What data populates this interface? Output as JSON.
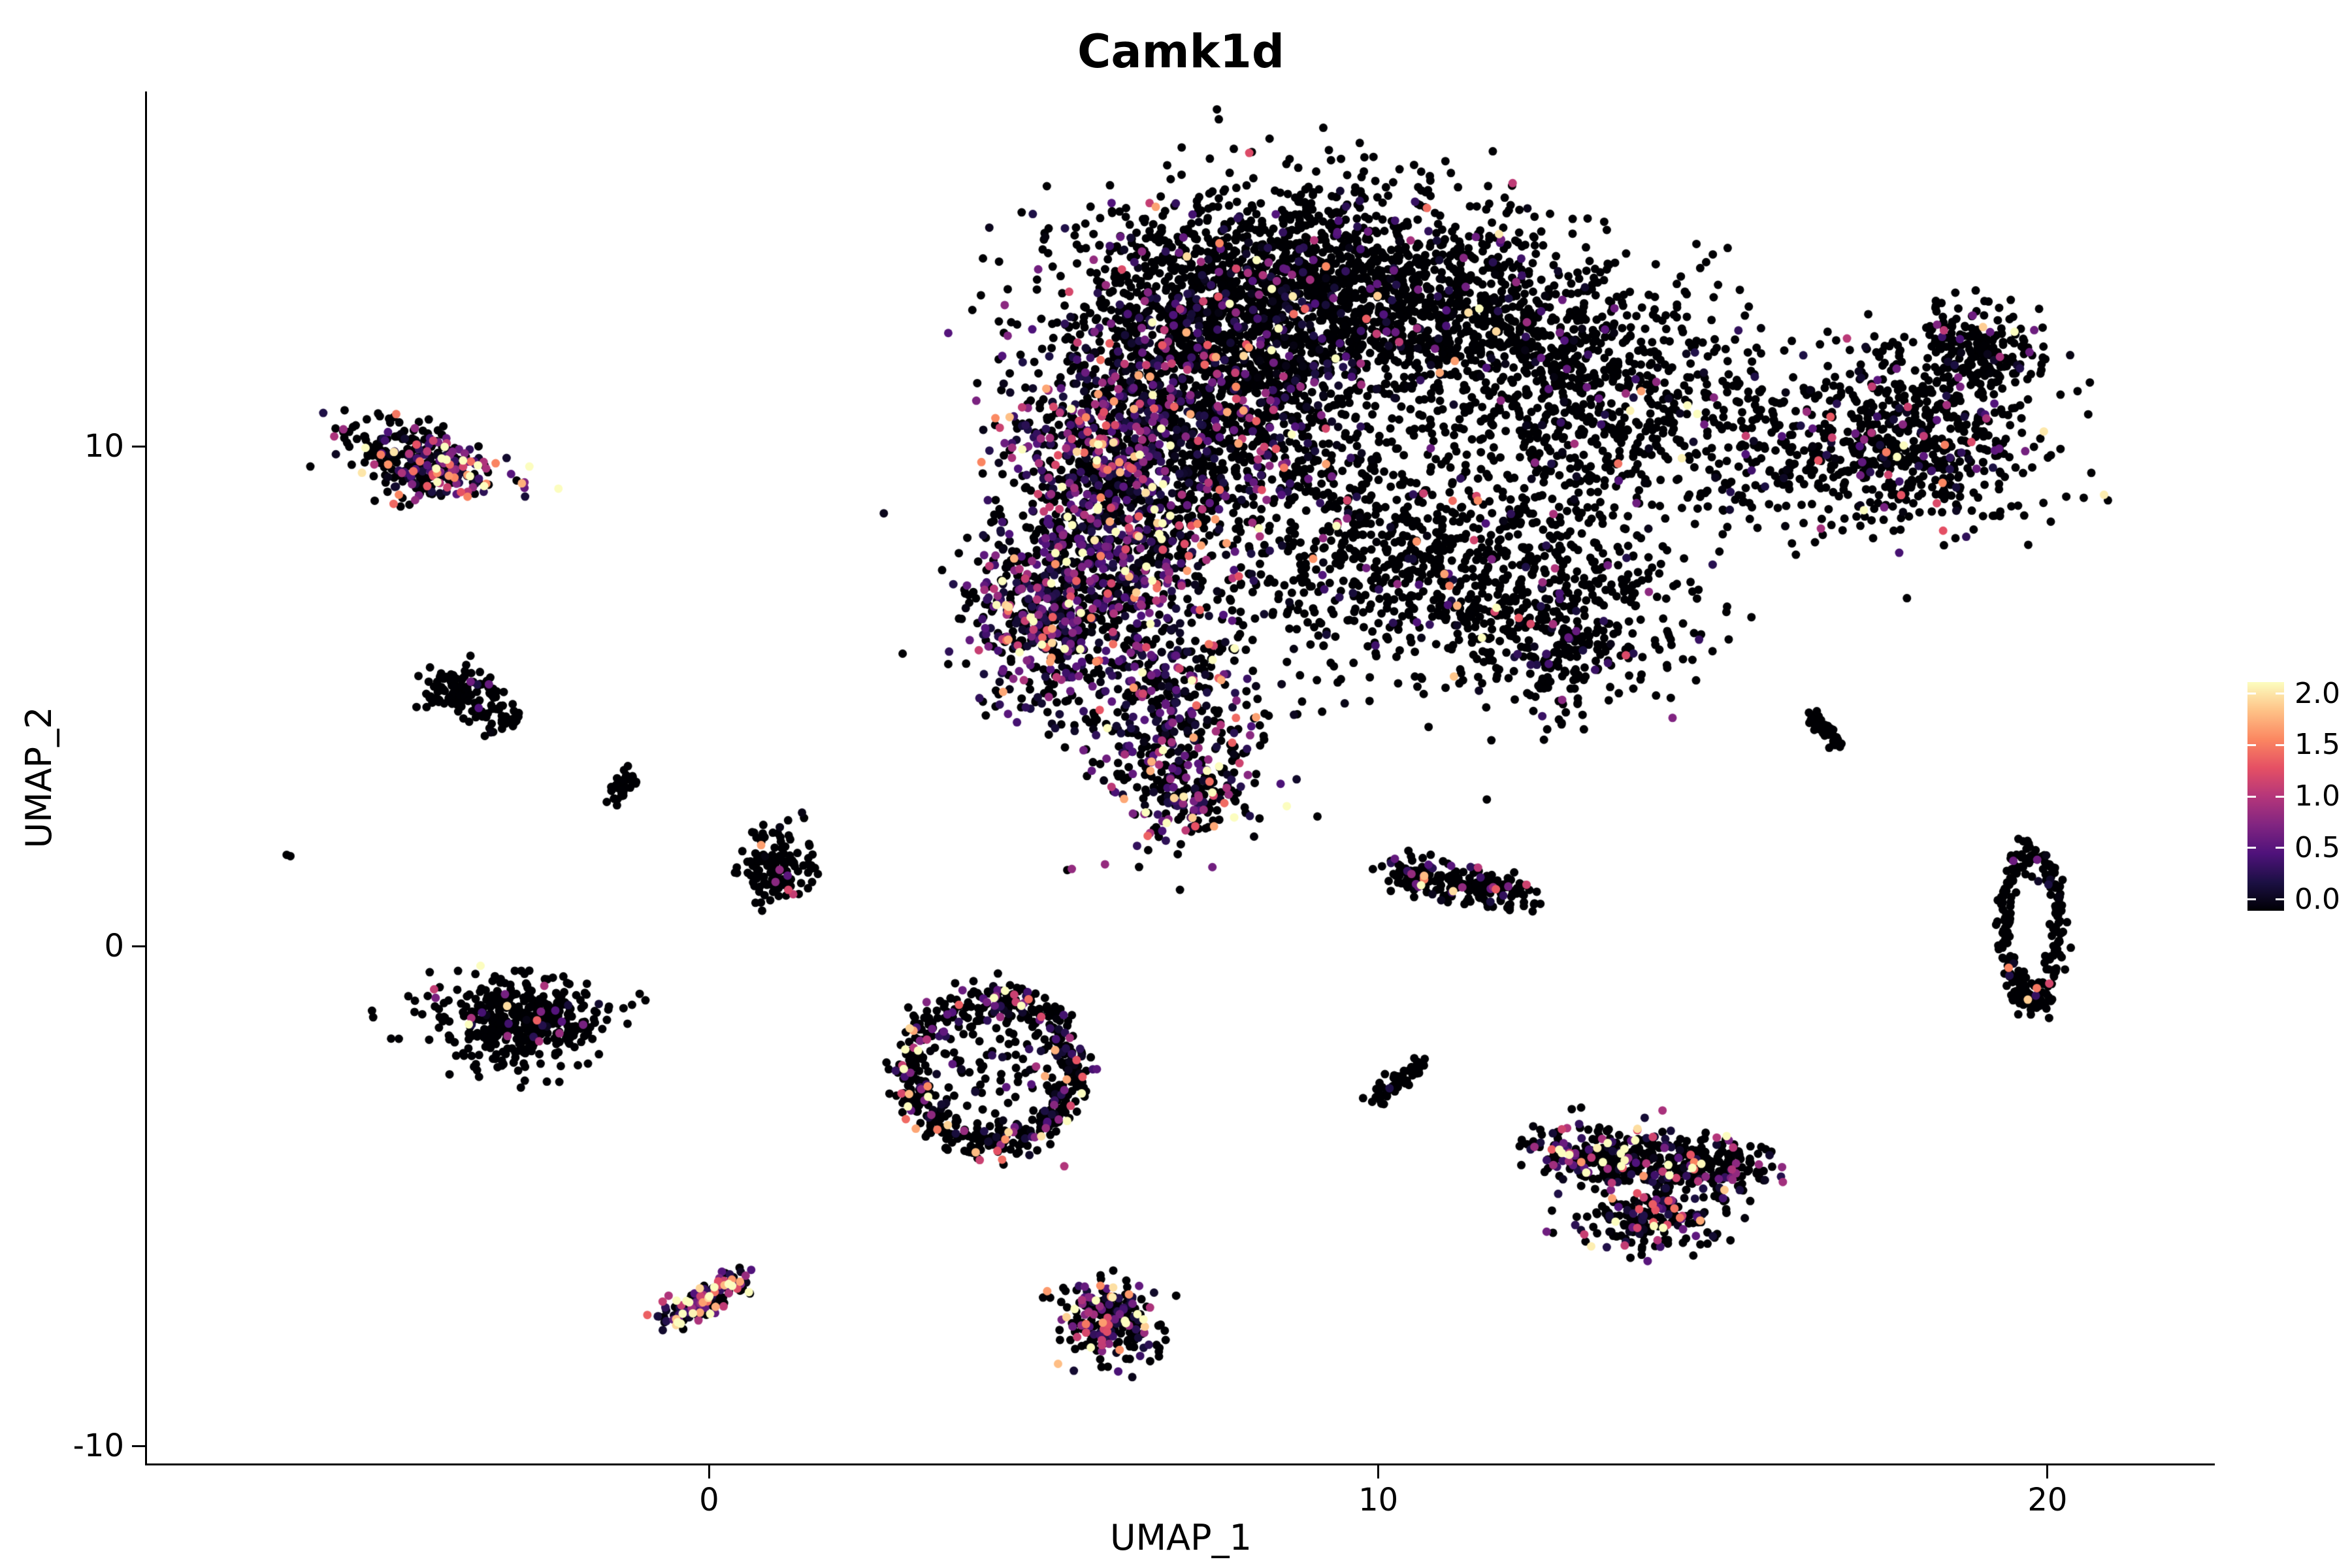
{
  "page": {
    "background": "#ffffff"
  },
  "chart_data": {
    "type": "scatter",
    "title": "Camk1d",
    "xlabel": "UMAP_1",
    "ylabel": "UMAP_2",
    "xlim": [
      -8.4,
      22.5
    ],
    "ylim": [
      -10.35,
      17.1
    ],
    "grid": false,
    "x_ticks": [
      {
        "value": 0,
        "label": "0"
      },
      {
        "value": 10,
        "label": "10"
      },
      {
        "value": 20,
        "label": "20"
      }
    ],
    "y_ticks": [
      {
        "value": 10,
        "label": "10"
      },
      {
        "value": 0,
        "label": "0"
      },
      {
        "value": -10,
        "label": "-10"
      }
    ],
    "legend": {
      "position": "right",
      "min": 0,
      "max": 2,
      "labels": [
        {
          "value": 2.0,
          "label": "2.0"
        },
        {
          "value": 1.5,
          "label": "1.5"
        },
        {
          "value": 1.0,
          "label": "1.0"
        },
        {
          "value": 0.5,
          "label": "0.5"
        },
        {
          "value": 0.0,
          "label": "0.0"
        }
      ]
    },
    "colormap": {
      "name": "magma",
      "stops": [
        "#000004",
        "#1C1044",
        "#4F127B",
        "#812581",
        "#B5367A",
        "#E55064",
        "#FB8761",
        "#FEC287",
        "#FCFDBF"
      ]
    },
    "point_radius_px": 6.5,
    "seed": 7,
    "clusters": [
      {
        "name": "blob-top-band",
        "shape": "gauss",
        "cx": 9.0,
        "cy": 13.6,
        "sx": 1.6,
        "sy": 0.9,
        "n": 1100,
        "expr_frac": 0.12,
        "expr_scale": 0.5
      },
      {
        "name": "blob-top-left-shoulder",
        "shape": "gauss",
        "cx": 7.0,
        "cy": 12.2,
        "sx": 1.0,
        "sy": 0.9,
        "n": 600,
        "expr_frac": 0.2,
        "expr_scale": 0.55
      },
      {
        "name": "blob-left-colored-band",
        "shape": "gauss",
        "cx": 6.1,
        "cy": 8.9,
        "sx": 0.85,
        "sy": 1.6,
        "n": 1300,
        "expr_frac": 0.5,
        "expr_scale": 0.6
      },
      {
        "name": "blob-left-edge-lower",
        "shape": "gauss",
        "cx": 4.9,
        "cy": 6.6,
        "sx": 0.55,
        "sy": 0.9,
        "n": 420,
        "expr_frac": 0.45,
        "expr_scale": 0.6
      },
      {
        "name": "blob-center-core",
        "shape": "gauss",
        "cx": 8.0,
        "cy": 10.5,
        "sx": 1.0,
        "sy": 1.2,
        "n": 700,
        "expr_frac": 0.28,
        "expr_scale": 0.55
      },
      {
        "name": "blob-right-upper",
        "shape": "gauss",
        "cx": 10.9,
        "cy": 12.4,
        "sx": 1.6,
        "sy": 1.0,
        "n": 850,
        "expr_frac": 0.08,
        "expr_scale": 0.5
      },
      {
        "name": "blob-right-lower",
        "shape": "gauss",
        "cx": 10.8,
        "cy": 7.8,
        "sx": 1.6,
        "sy": 1.2,
        "n": 850,
        "expr_frac": 0.1,
        "expr_scale": 0.5
      },
      {
        "name": "blob-far-right-upper",
        "shape": "gauss",
        "cx": 13.2,
        "cy": 11.0,
        "sx": 1.1,
        "sy": 1.1,
        "n": 550,
        "expr_frac": 0.08,
        "expr_scale": 0.55
      },
      {
        "name": "blob-right-notch",
        "shape": "gauss",
        "cx": 12.6,
        "cy": 6.3,
        "sx": 1.0,
        "sy": 0.8,
        "n": 350,
        "expr_frac": 0.12,
        "expr_scale": 0.5
      },
      {
        "name": "blob-bottom-protrusion",
        "shape": "gauss",
        "cx": 6.9,
        "cy": 4.6,
        "sx": 0.7,
        "sy": 1.0,
        "n": 420,
        "expr_frac": 0.42,
        "expr_scale": 0.65
      },
      {
        "name": "blob-protrusion-tip",
        "shape": "gauss",
        "cx": 7.2,
        "cy": 3.0,
        "sx": 0.45,
        "sy": 0.45,
        "n": 130,
        "expr_frac": 0.5,
        "expr_scale": 0.8
      },
      {
        "name": "blob-wing-bridge",
        "shape": "gauss",
        "cx": 15.7,
        "cy": 9.8,
        "sx": 0.7,
        "sy": 0.8,
        "n": 140,
        "expr_frac": 0.1,
        "expr_scale": 0.5
      },
      {
        "name": "right-wing-main",
        "shape": "gauss",
        "cx": 17.9,
        "cy": 10.1,
        "sx": 0.95,
        "sy": 0.85,
        "n": 620,
        "expr_frac": 0.13,
        "expr_scale": 0.6
      },
      {
        "name": "right-wing-tip",
        "shape": "gauss",
        "cx": 18.9,
        "cy": 12.0,
        "sx": 0.5,
        "sy": 0.45,
        "n": 200,
        "expr_frac": 0.1,
        "expr_scale": 0.6
      },
      {
        "name": "top-left-cluster-upper",
        "shape": "gauss",
        "cx": -4.6,
        "cy": 10.1,
        "sx": 0.5,
        "sy": 0.25,
        "n": 110,
        "expr_frac": 0.15,
        "expr_scale": 0.6
      },
      {
        "name": "top-left-cluster-lower",
        "shape": "gauss",
        "cx": -4.1,
        "cy": 9.5,
        "sx": 0.55,
        "sy": 0.28,
        "n": 200,
        "expr_frac": 0.6,
        "expr_scale": 0.85
      },
      {
        "name": "left-comma-head",
        "shape": "gauss",
        "cx": -3.7,
        "cy": 5.1,
        "sx": 0.3,
        "sy": 0.25,
        "n": 110,
        "expr_frac": 0.03,
        "expr_scale": 0.4
      },
      {
        "name": "left-comma-tail",
        "shape": "gauss",
        "cx": -3.1,
        "cy": 4.5,
        "sx": 0.2,
        "sy": 0.15,
        "n": 35,
        "expr_frac": 0.03,
        "expr_scale": 0.4
      },
      {
        "name": "tiny-diagonal",
        "shape": "streak",
        "cx": -1.3,
        "cy": 3.2,
        "dx": 0.12,
        "dy": 0.3,
        "jitter": 0.07,
        "n": 40,
        "expr_frac": 0.02,
        "expr_scale": 0.4
      },
      {
        "name": "isolated-dot",
        "shape": "gauss",
        "cx": -6.3,
        "cy": 1.85,
        "sx": 0.04,
        "sy": 0.04,
        "n": 2,
        "expr_frac": 0,
        "expr_scale": 0.3
      },
      {
        "name": "small-cluster-center-left",
        "shape": "gauss",
        "cx": 1.0,
        "cy": 1.6,
        "sx": 0.3,
        "sy": 0.35,
        "n": 130,
        "expr_frac": 0.06,
        "expr_scale": 0.5
      },
      {
        "name": "mid-left-cluster",
        "shape": "gauss",
        "cx": -2.9,
        "cy": -1.5,
        "sx": 0.7,
        "sy": 0.45,
        "n": 420,
        "expr_frac": 0.05,
        "expr_scale": 0.9
      },
      {
        "name": "donut-ring",
        "shape": "ring",
        "cx": 4.2,
        "cy": -2.5,
        "rx": 1.2,
        "ry": 1.4,
        "thickness": 0.13,
        "n": 560,
        "expr_frac": 0.25,
        "expr_scale": 0.7
      },
      {
        "name": "donut-interior",
        "shape": "gauss",
        "cx": 4.2,
        "cy": -2.4,
        "sx": 0.5,
        "sy": 0.6,
        "n": 80,
        "expr_frac": 0.2,
        "expr_scale": 0.6
      },
      {
        "name": "mid-right-streak",
        "shape": "streak",
        "cx": 11.2,
        "cy": 1.25,
        "dx": 0.95,
        "dy": -0.22,
        "jitter": 0.18,
        "n": 220,
        "expr_frac": 0.12,
        "expr_scale": 0.6
      },
      {
        "name": "small-diagonal-2",
        "shape": "streak",
        "cx": 10.3,
        "cy": -2.7,
        "dx": 0.38,
        "dy": 0.4,
        "jitter": 0.09,
        "n": 60,
        "expr_frac": 0.03,
        "expr_scale": 0.4
      },
      {
        "name": "right-lobe-upper",
        "shape": "streak",
        "cx": 14.1,
        "cy": -4.3,
        "dx": 1.5,
        "dy": -0.2,
        "jitter": 0.3,
        "n": 480,
        "expr_frac": 0.3,
        "expr_scale": 0.8
      },
      {
        "name": "right-lobe-lower",
        "shape": "gauss",
        "cx": 14.1,
        "cy": -5.5,
        "sx": 0.55,
        "sy": 0.3,
        "n": 170,
        "expr_frac": 0.3,
        "expr_scale": 0.7
      },
      {
        "name": "far-right-tiny",
        "shape": "streak",
        "cx": 16.7,
        "cy": 4.3,
        "dx": 0.22,
        "dy": -0.3,
        "jitter": 0.06,
        "n": 50,
        "expr_frac": 0.03,
        "expr_scale": 0.4
      },
      {
        "name": "far-right-ring",
        "shape": "ring",
        "cx": 19.75,
        "cy": 0.4,
        "rx": 0.42,
        "ry": 1.45,
        "thickness": 0.14,
        "n": 260,
        "expr_frac": 0.05,
        "expr_scale": 0.6
      },
      {
        "name": "bottom-left-streak",
        "shape": "streak",
        "cx": -0.1,
        "cy": -7.1,
        "dx": 0.55,
        "dy": 0.45,
        "jitter": 0.14,
        "n": 160,
        "expr_frac": 0.65,
        "expr_scale": 0.9
      },
      {
        "name": "bottom-center-cluster",
        "shape": "gauss",
        "cx": 6.0,
        "cy": -7.5,
        "sx": 0.38,
        "sy": 0.42,
        "n": 230,
        "expr_frac": 0.45,
        "expr_scale": 0.85
      }
    ]
  }
}
